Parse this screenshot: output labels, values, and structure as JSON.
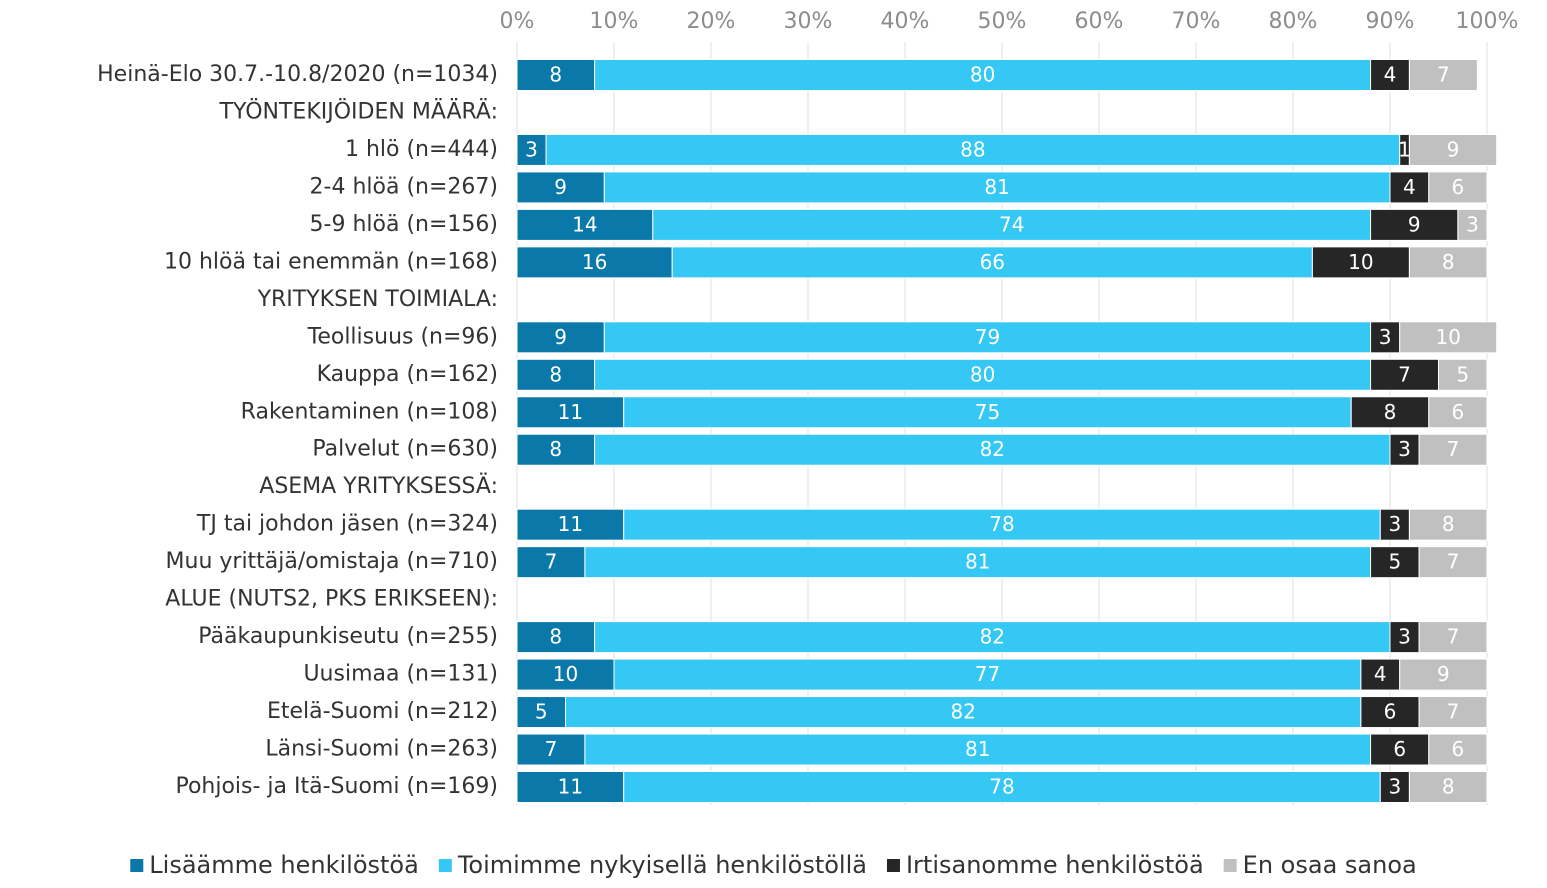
{
  "chart_data": {
    "type": "stacked-barh",
    "categories": [
      "Heinä-Elo 30.7.-10.8/2020 (n=1034)",
      "TYÖNTEKIJÖIDEN MÄÄRÄ:",
      "1 hlö (n=444)",
      "2-4 hlöä (n=267)",
      "5-9 hlöä (n=156)",
      "10 hlöä tai enemmän (n=168)",
      "YRITYKSEN TOIMIALA:",
      "Teollisuus (n=96)",
      "Kauppa (n=162)",
      "Rakentaminen (n=108)",
      "Palvelut (n=630)",
      "ASEMA YRITYKSESSÄ:",
      "TJ tai johdon jäsen (n=324)",
      "Muu yrittäjä/omistaja (n=710)",
      "ALUE (NUTS2, PKS ERIKSEEN):",
      "Pääkaupunkiseutu (n=255)",
      "Uusimaa (n=131)",
      "Etelä-Suomi (n=212)",
      "Länsi-Suomi (n=263)",
      "Pohjois- ja Itä-Suomi (n=169)"
    ],
    "series": [
      {
        "name": "Lisäämme henkilöstöä",
        "color": "#0a78a8",
        "values": [
          8,
          null,
          3,
          9,
          14,
          16,
          null,
          9,
          8,
          11,
          8,
          null,
          11,
          7,
          null,
          8,
          10,
          5,
          7,
          11
        ]
      },
      {
        "name": "Toimimme nykyisellä henkilöstöllä",
        "color": "#36c8f4",
        "values": [
          80,
          null,
          88,
          81,
          74,
          66,
          null,
          79,
          80,
          75,
          82,
          null,
          78,
          81,
          null,
          82,
          77,
          82,
          81,
          78
        ]
      },
      {
        "name": "Irtisanomme henkilöstöä",
        "color": "#262626",
        "values": [
          4,
          null,
          1,
          4,
          9,
          10,
          null,
          3,
          7,
          8,
          3,
          null,
          3,
          5,
          null,
          3,
          4,
          6,
          6,
          3
        ]
      },
      {
        "name": "En osaa sanoa",
        "color": "#c0c0c0",
        "values": [
          7,
          null,
          9,
          6,
          3,
          8,
          null,
          10,
          5,
          6,
          7,
          null,
          8,
          7,
          null,
          7,
          9,
          7,
          6,
          8
        ]
      }
    ],
    "xlim": [
      0,
      100
    ],
    "xticks": [
      {
        "value": 0,
        "label": "0%"
      },
      {
        "value": 10,
        "label": "10%"
      },
      {
        "value": 20,
        "label": "20%"
      },
      {
        "value": 30,
        "label": "30%"
      },
      {
        "value": 40,
        "label": "40%"
      },
      {
        "value": 50,
        "label": "50%"
      },
      {
        "value": 60,
        "label": "60%"
      },
      {
        "value": 70,
        "label": "70%"
      },
      {
        "value": 80,
        "label": "80%"
      },
      {
        "value": 90,
        "label": "90%"
      },
      {
        "value": 100,
        "label": "100%"
      }
    ],
    "grid": true,
    "legend": "bottom"
  }
}
